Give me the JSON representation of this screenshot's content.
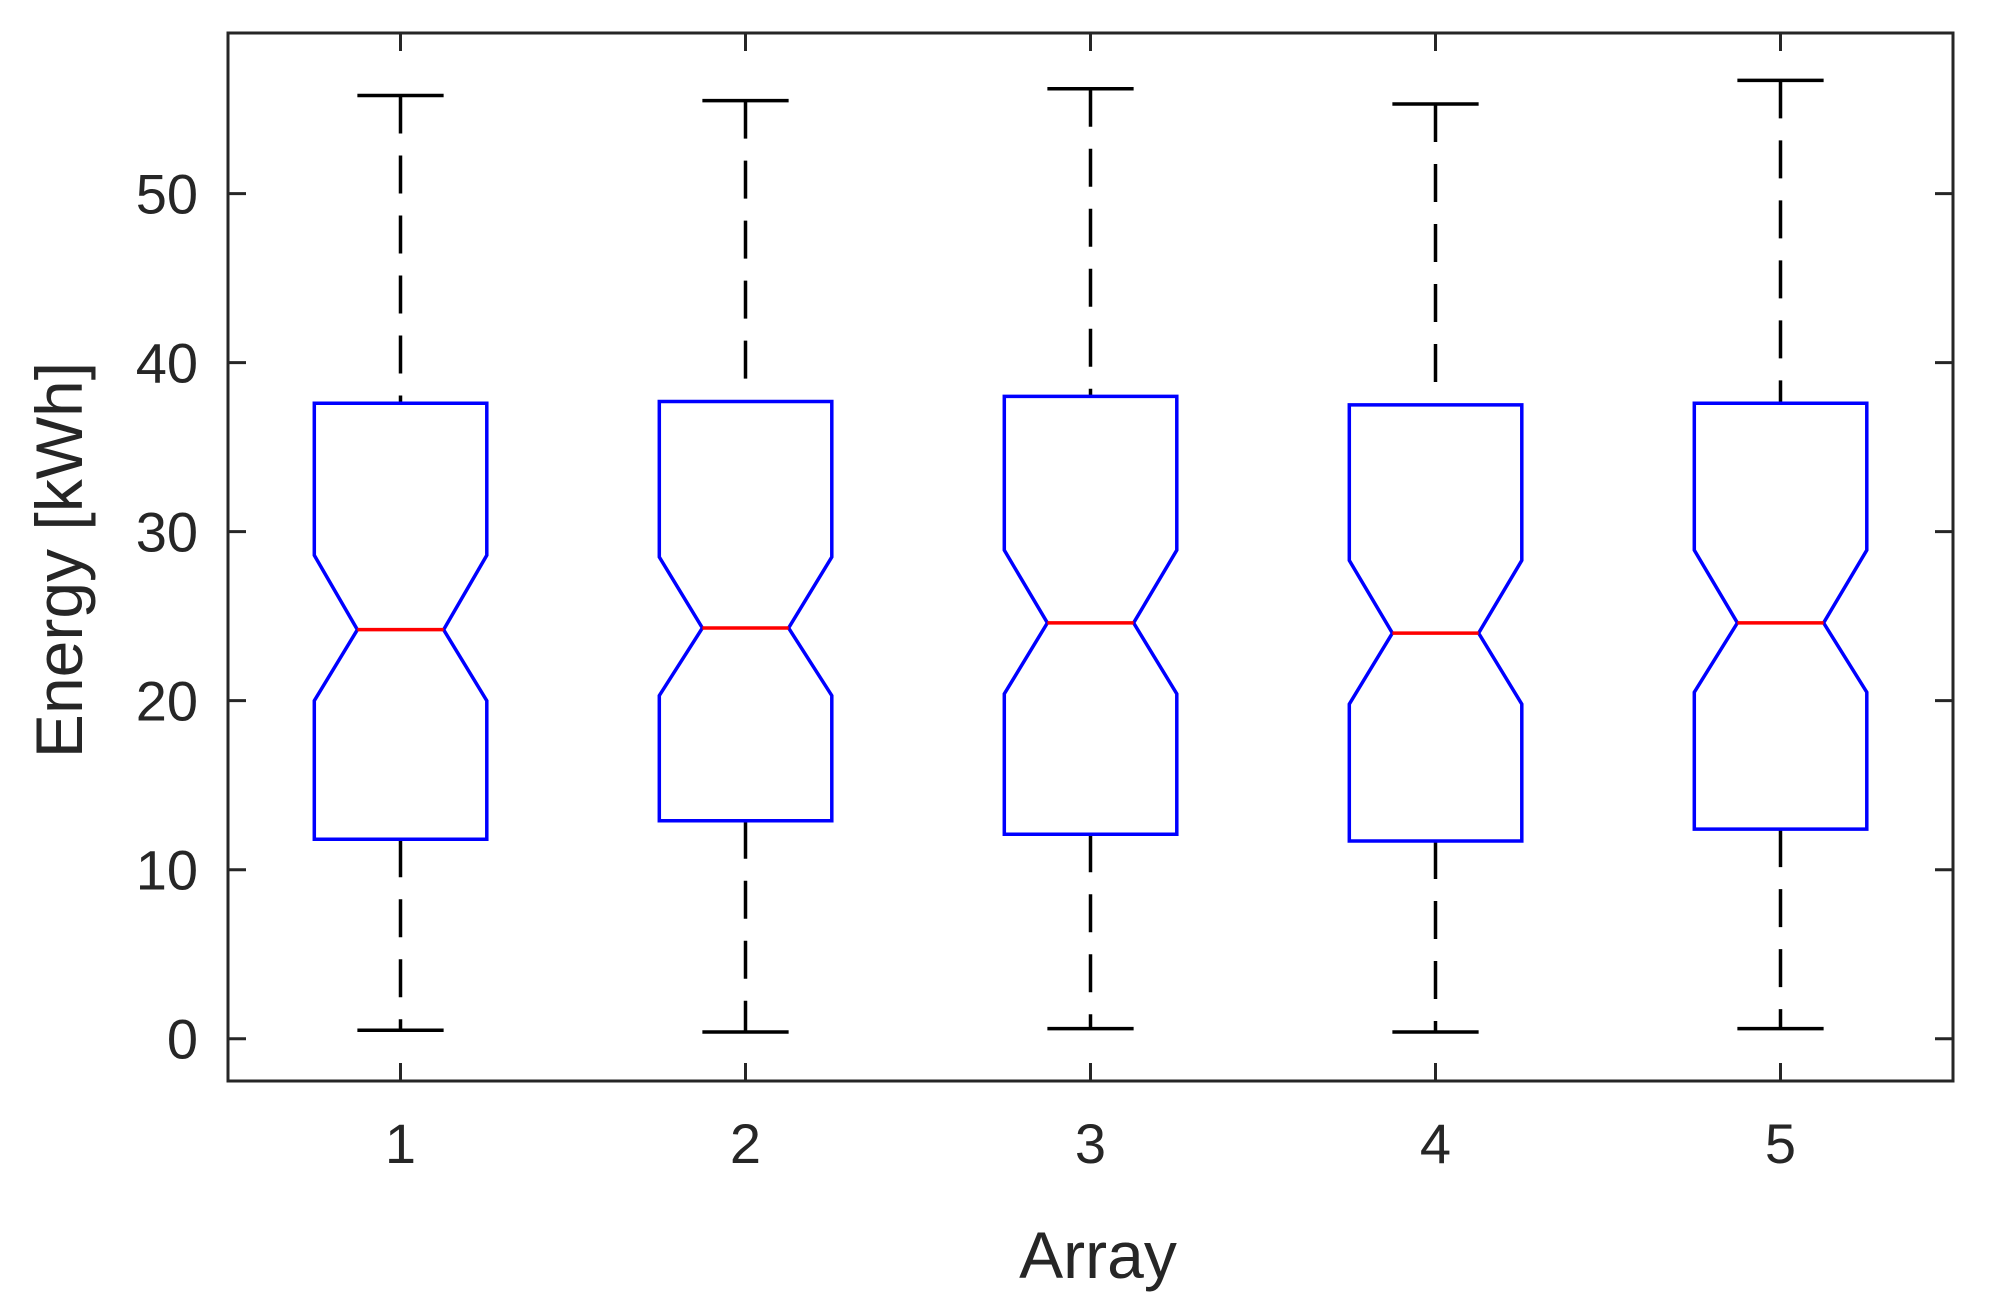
{
  "chart_data": {
    "type": "boxplot",
    "notched": true,
    "title": "",
    "xlabel": "Array",
    "ylabel": "Energy [kWh]",
    "ylim": [
      -2.5,
      59.5
    ],
    "yticks": [
      0,
      10,
      20,
      30,
      40,
      50
    ],
    "categories": [
      "1",
      "2",
      "3",
      "4",
      "5"
    ],
    "boxes": [
      {
        "min": 0.5,
        "q1": 11.8,
        "notch_low": 20.0,
        "median": 24.2,
        "notch_high": 28.6,
        "q3": 37.6,
        "max": 55.8
      },
      {
        "min": 0.4,
        "q1": 12.9,
        "notch_low": 20.3,
        "median": 24.3,
        "notch_high": 28.5,
        "q3": 37.7,
        "max": 55.5
      },
      {
        "min": 0.6,
        "q1": 12.1,
        "notch_low": 20.4,
        "median": 24.6,
        "notch_high": 28.9,
        "q3": 38.0,
        "max": 56.2
      },
      {
        "min": 0.4,
        "q1": 11.7,
        "notch_low": 19.8,
        "median": 24.0,
        "notch_high": 28.3,
        "q3": 37.5,
        "max": 55.3
      },
      {
        "min": 0.6,
        "q1": 12.4,
        "notch_low": 20.5,
        "median": 24.6,
        "notch_high": 28.9,
        "q3": 37.6,
        "max": 56.7
      }
    ],
    "colors": {
      "box": "#0000ff",
      "median": "#ff0000",
      "whisker": "#000000",
      "axis": "#262626"
    },
    "grid": false,
    "legend": "none"
  }
}
